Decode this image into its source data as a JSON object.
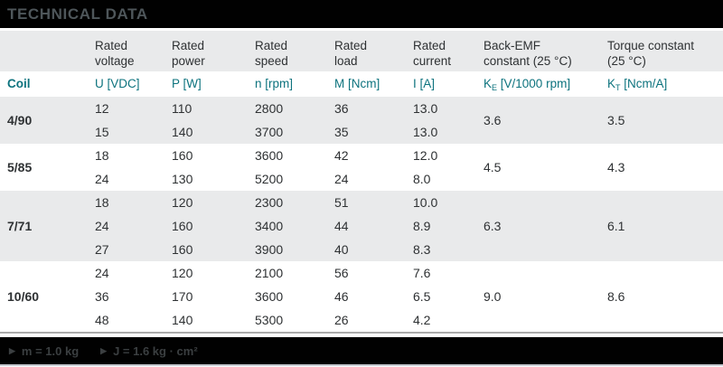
{
  "title": "TECHNICAL DATA",
  "colors": {
    "accent_teal": "#0d737e",
    "band_gray": "#e9eaeb",
    "bar_black": "#010101",
    "title_gray": "#4e565a"
  },
  "table": {
    "column_headers": [
      {
        "line1": "Rated",
        "line2": "voltage"
      },
      {
        "line1": "Rated",
        "line2": "power"
      },
      {
        "line1": "Rated",
        "line2": "speed"
      },
      {
        "line1": "Rated",
        "line2": "load"
      },
      {
        "line1": "Rated",
        "line2": "current"
      },
      {
        "line1": "Back-EMF",
        "line2": "constant (25 °C)"
      },
      {
        "line1": "Torque constant",
        "line2": "(25 °C)"
      }
    ],
    "unit_row": {
      "coil": "Coil",
      "u": "U [VDC]",
      "p": "P [W]",
      "n": "n [rpm]",
      "m": "M [Ncm]",
      "i": "I [A]",
      "ke_base": "K",
      "ke_sub": "E",
      "ke_rest": " [V/1000 rpm]",
      "kt_base": "K",
      "kt_sub": "T",
      "kt_rest": " [Ncm/A]"
    },
    "groups": [
      {
        "coil": "4/90",
        "ke": "3.6",
        "kt": "3.5",
        "rows": [
          [
            "12",
            "110",
            "2800",
            "36",
            "13.0"
          ],
          [
            "15",
            "140",
            "3700",
            "35",
            "13.0"
          ]
        ]
      },
      {
        "coil": "5/85",
        "ke": "4.5",
        "kt": "4.3",
        "rows": [
          [
            "18",
            "160",
            "3600",
            "42",
            "12.0"
          ],
          [
            "24",
            "130",
            "5200",
            "24",
            "8.0"
          ]
        ]
      },
      {
        "coil": "7/71",
        "ke": "6.3",
        "kt": "6.1",
        "rows": [
          [
            "18",
            "120",
            "2300",
            "51",
            "10.0"
          ],
          [
            "24",
            "160",
            "3400",
            "44",
            "8.9"
          ],
          [
            "27",
            "160",
            "3900",
            "40",
            "8.3"
          ]
        ]
      },
      {
        "coil": "10/60",
        "ke": "9.0",
        "kt": "8.6",
        "rows": [
          [
            "24",
            "120",
            "2100",
            "56",
            "7.6"
          ],
          [
            "36",
            "170",
            "3600",
            "46",
            "6.5"
          ],
          [
            "48",
            "140",
            "5300",
            "26",
            "4.2"
          ]
        ]
      }
    ]
  },
  "footer": {
    "notes": [
      "m = 1.0 kg",
      "J = 1.6 kg · cm²"
    ]
  }
}
